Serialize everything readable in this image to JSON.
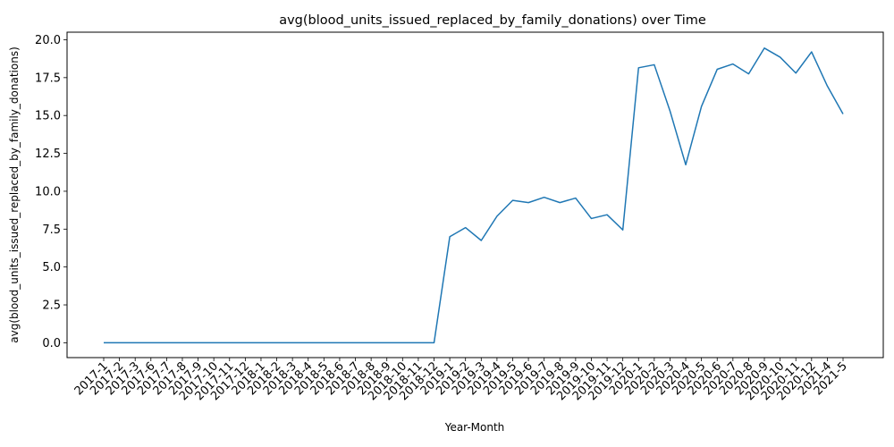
{
  "chart_data": {
    "type": "line",
    "title": "avg(blood_units_issued_replaced_by_family_donations) over Time",
    "xlabel": "Year-Month",
    "ylabel": "avg(blood_units_issued_replaced_by_family_donations)",
    "ylim": [
      -0.98,
      20.5
    ],
    "yticks": [
      "0.0",
      "2.5",
      "5.0",
      "7.5",
      "10.0",
      "12.5",
      "15.0",
      "17.5",
      "20.0"
    ],
    "grid": false,
    "line_color": "#1f77b4",
    "categories": [
      "2017-1",
      "2017-2",
      "2017-3",
      "2017-6",
      "2017-7",
      "2017-8",
      "2017-9",
      "2017-10",
      "2017-11",
      "2017-12",
      "2018-1",
      "2018-2",
      "2018-3",
      "2018-4",
      "2018-5",
      "2018-6",
      "2018-7",
      "2018-8",
      "2018-9",
      "2018-10",
      "2018-11",
      "2018-12",
      "2019-1",
      "2019-2",
      "2019-3",
      "2019-4",
      "2019-5",
      "2019-6",
      "2019-7",
      "2019-8",
      "2019-9",
      "2019-10",
      "2019-11",
      "2019-12",
      "2020-1",
      "2020-2",
      "2020-3",
      "2020-4",
      "2020-5",
      "2020-6",
      "2020-7",
      "2020-8",
      "2020-9",
      "2020-10",
      "2020-11",
      "2020-12",
      "2021-4",
      "2021-5"
    ],
    "values": [
      0,
      0,
      0,
      0,
      0,
      0,
      0,
      0,
      0,
      0,
      0,
      0,
      0,
      0,
      0,
      0,
      0,
      0,
      0,
      0,
      0,
      0,
      7.0,
      7.6,
      6.75,
      8.35,
      9.4,
      9.25,
      9.6,
      9.25,
      9.55,
      8.2,
      8.45,
      7.45,
      18.15,
      18.35,
      15.3,
      11.75,
      15.6,
      18.05,
      18.4,
      17.75,
      19.45,
      18.85,
      17.8,
      19.2,
      16.95,
      15.1
    ]
  }
}
